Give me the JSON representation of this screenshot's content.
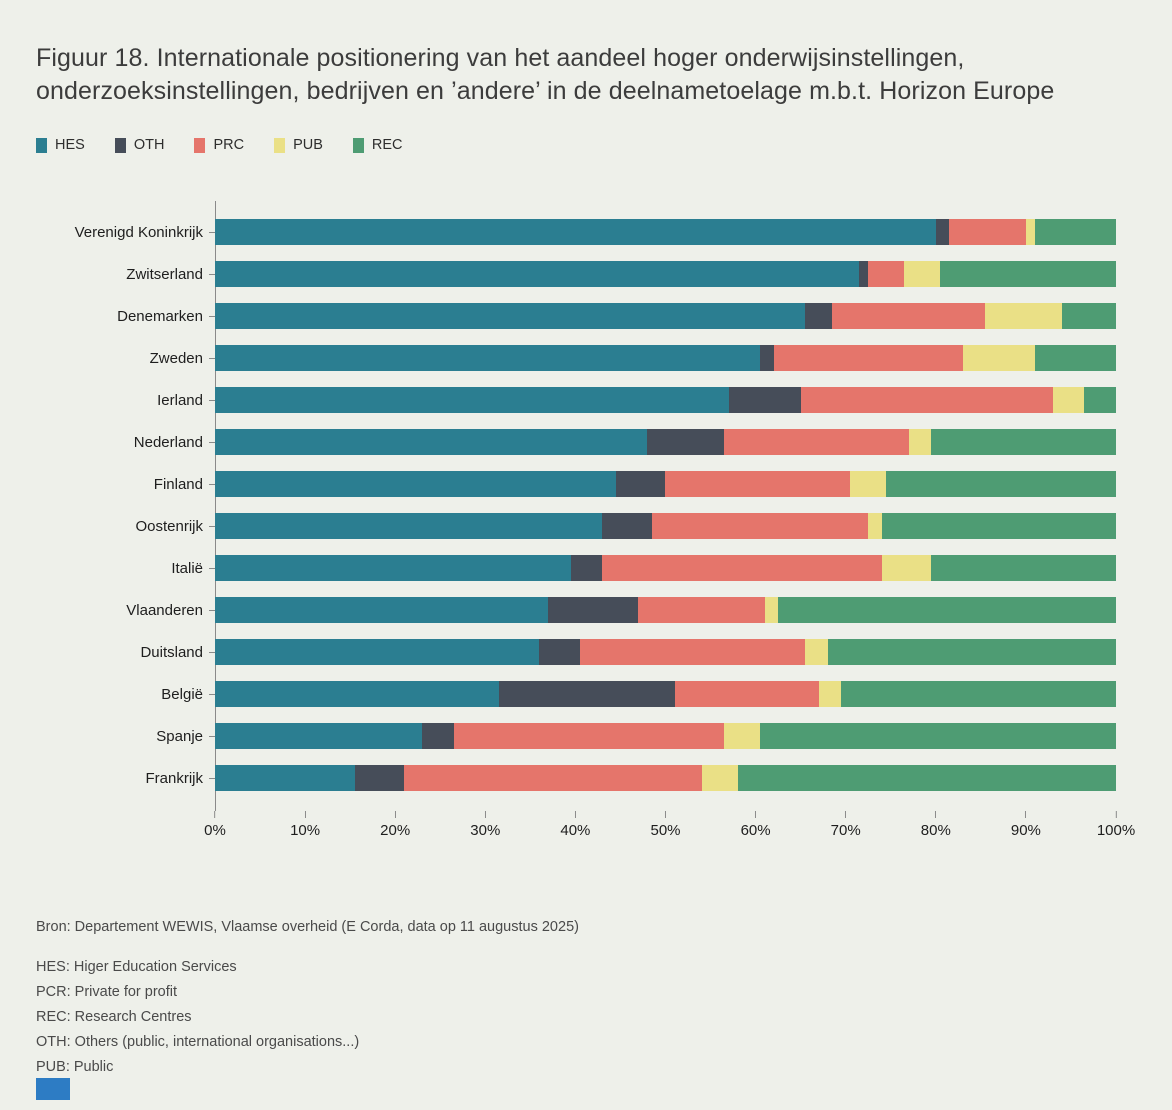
{
  "page": {
    "title": "Figuur 18. Internationale positionering van het aandeel hoger onderwijsinstellingen, onderzoeksinstellingen, bedrijven en ’andere’ in de deelnametoelage m.b.t. Horizon Europe",
    "source": "Bron: Departement WEWIS, Vlaamse overheid (E Corda, data op 11 augustus 2025)",
    "abbreviations": [
      "HES: Higer Education Services",
      "PCR: Private for profit",
      "REC: Research Centres",
      "OTH: Others (public, international organisations...)",
      "PUB: Public"
    ]
  },
  "chart_data": {
    "type": "bar",
    "orientation": "horizontal",
    "stacked": true,
    "title": "Figuur 18. Internationale positionering van het aandeel hoger onderwijsinstellingen, onderzoeksinstellingen, bedrijven en ’andere’ in de deelnametoelage m.b.t. Horizon Europe",
    "xlabel": "",
    "ylabel": "",
    "xlim": [
      0,
      100
    ],
    "grid": false,
    "legend_position": "top",
    "xticks": [
      "0%",
      "10%",
      "20%",
      "30%",
      "40%",
      "50%",
      "60%",
      "70%",
      "80%",
      "90%",
      "100%"
    ],
    "categories": [
      "Verenigd Koninkrijk",
      "Zwitserland",
      "Denemarken",
      "Zweden",
      "Ierland",
      "Nederland",
      "Finland",
      "Oostenrijk",
      "Italië",
      "Vlaanderen",
      "Duitsland",
      "België",
      "Spanje",
      "Frankrijk"
    ],
    "series": [
      {
        "name": "HES",
        "color": "#2b7e91",
        "values": [
          80,
          71.5,
          65.5,
          60.5,
          57,
          48,
          44.5,
          43,
          39.5,
          37,
          36,
          31.5,
          23,
          15.5
        ]
      },
      {
        "name": "OTH",
        "color": "#464d59",
        "values": [
          1.5,
          1,
          3,
          1.5,
          8,
          8.5,
          5.5,
          5.5,
          3.5,
          10,
          4.5,
          19.5,
          3.5,
          5.5
        ]
      },
      {
        "name": "PRC",
        "color": "#e5756b",
        "values": [
          8.5,
          4,
          17,
          21,
          28,
          20.5,
          20.5,
          24,
          31,
          14,
          25,
          16,
          30,
          33
        ]
      },
      {
        "name": "PUB",
        "color": "#eae086",
        "values": [
          1,
          4,
          8.5,
          8,
          3.5,
          2.5,
          4,
          1.5,
          5.5,
          1.5,
          2.5,
          2.5,
          4,
          4
        ]
      },
      {
        "name": "REC",
        "color": "#4e9c73",
        "values": [
          9,
          19.5,
          6,
          9,
          3.5,
          20.5,
          25.5,
          26,
          20.5,
          37.5,
          32,
          30.5,
          39.5,
          42
        ]
      }
    ]
  }
}
